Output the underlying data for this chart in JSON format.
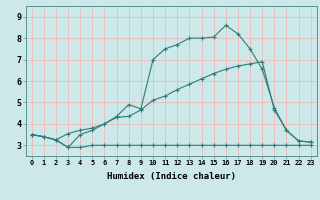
{
  "title": "",
  "xlabel": "Humidex (Indice chaleur)",
  "ylabel": "",
  "background_color": "#cce8e8",
  "grid_color": "#f0b8b8",
  "line_color": "#2e7d7a",
  "xlim": [
    -0.5,
    23.5
  ],
  "ylim": [
    2.5,
    9.5
  ],
  "xticks": [
    0,
    1,
    2,
    3,
    4,
    5,
    6,
    7,
    8,
    9,
    10,
    11,
    12,
    13,
    14,
    15,
    16,
    17,
    18,
    19,
    20,
    21,
    22,
    23
  ],
  "yticks": [
    3,
    4,
    5,
    6,
    7,
    8,
    9
  ],
  "series1_x": [
    0,
    1,
    2,
    3,
    4,
    5,
    6,
    7,
    8,
    9,
    10,
    11,
    12,
    13,
    14,
    15,
    16,
    17,
    18,
    19,
    20,
    21,
    22,
    23
  ],
  "series1_y": [
    3.5,
    3.4,
    3.25,
    2.9,
    2.9,
    3.0,
    3.0,
    3.0,
    3.0,
    3.0,
    3.0,
    3.0,
    3.0,
    3.0,
    3.0,
    3.0,
    3.0,
    3.0,
    3.0,
    3.0,
    3.0,
    3.0,
    3.0,
    3.0
  ],
  "series2_x": [
    0,
    1,
    2,
    3,
    4,
    5,
    6,
    7,
    8,
    9,
    10,
    11,
    12,
    13,
    14,
    15,
    16,
    17,
    18,
    19,
    20,
    21,
    22,
    23
  ],
  "series2_y": [
    3.5,
    3.4,
    3.25,
    3.55,
    3.7,
    3.8,
    4.0,
    4.3,
    4.35,
    4.65,
    5.1,
    5.3,
    5.6,
    5.85,
    6.1,
    6.35,
    6.55,
    6.7,
    6.8,
    6.9,
    4.65,
    3.7,
    3.2,
    3.15
  ],
  "series3_x": [
    0,
    1,
    2,
    3,
    4,
    5,
    6,
    7,
    8,
    9,
    10,
    11,
    12,
    13,
    14,
    15,
    16,
    17,
    18,
    19,
    20,
    21,
    22,
    23
  ],
  "series3_y": [
    3.5,
    3.4,
    3.25,
    2.9,
    3.5,
    3.7,
    4.0,
    4.35,
    4.9,
    4.7,
    7.0,
    7.5,
    7.7,
    8.0,
    8.0,
    8.05,
    8.6,
    8.2,
    7.5,
    6.55,
    4.75,
    3.7,
    3.2,
    3.15
  ],
  "xlabel_fontsize": 6.5,
  "tick_fontsize_x": 5.0,
  "tick_fontsize_y": 6.0
}
